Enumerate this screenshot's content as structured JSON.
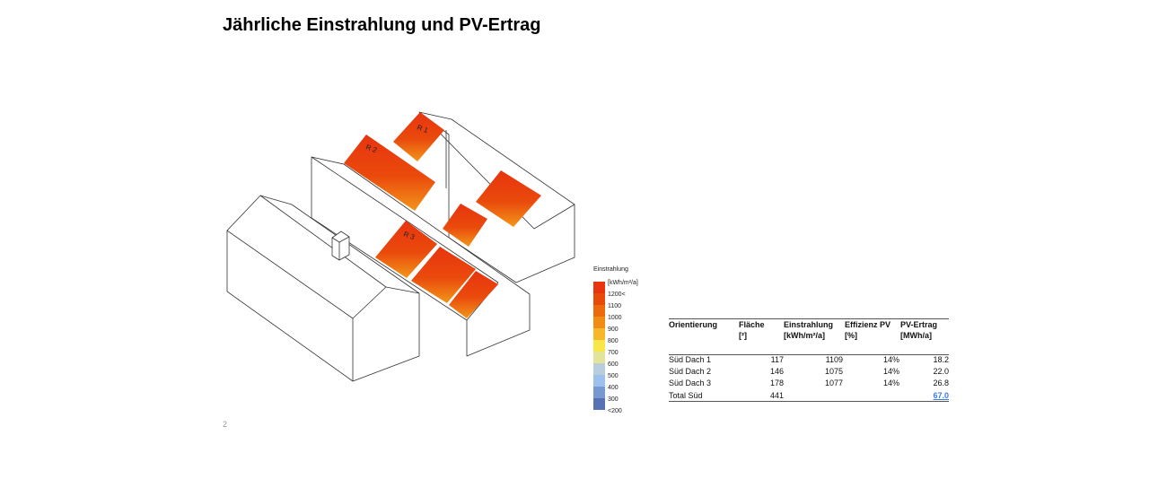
{
  "title": "Jährliche Einstrahlung und PV-Ertrag",
  "page_number": "2",
  "roof_labels": [
    "R 1",
    "R 2",
    "R 3"
  ],
  "legend": {
    "title": "Einstrahlung",
    "unit": "[kWh/m²/a]",
    "labels": [
      "1200<",
      "1100",
      "1000",
      "900",
      "800",
      "700",
      "600",
      "500",
      "400",
      "300",
      "<200"
    ],
    "colors": [
      "#e8340f",
      "#e84a0a",
      "#ec6a0c",
      "#f08c14",
      "#f6b82a",
      "#f8e64a",
      "#e2e49a",
      "#b8cede",
      "#9ec0ec",
      "#7898d0",
      "#5672b4"
    ]
  },
  "table": {
    "headers": [
      [
        "Orientierung",
        ""
      ],
      [
        "Fläche",
        "[²]"
      ],
      [
        "Einstrahlung",
        "[kWh/m²/a]"
      ],
      [
        "Effizienz PV",
        "[%]"
      ],
      [
        "PV-Ertrag",
        "[MWh/a]"
      ]
    ],
    "rows": [
      [
        "Süd Dach 1",
        "117",
        "1109",
        "14%",
        "18.2"
      ],
      [
        "Süd Dach 2",
        "146",
        "1075",
        "14%",
        "22.0"
      ],
      [
        "Süd Dach 3",
        "178",
        "1077",
        "14%",
        "26.8"
      ]
    ],
    "total": [
      "Total Süd",
      "441",
      "",
      "",
      "67.0"
    ],
    "total_color": "#3a7ee8"
  }
}
